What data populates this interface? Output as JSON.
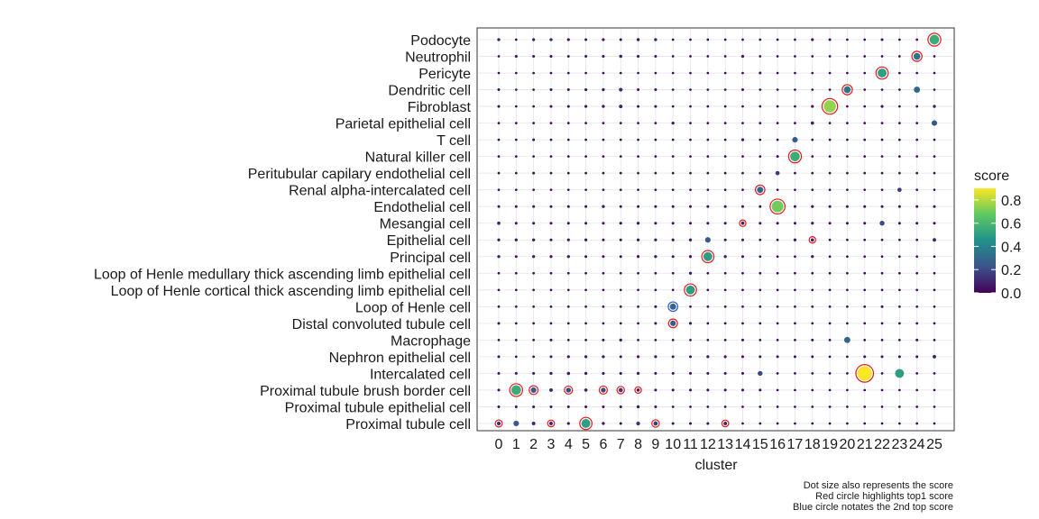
{
  "chart_data": {
    "type": "scatter",
    "xlabel": "cluster",
    "clusters": [
      "0",
      "1",
      "2",
      "3",
      "4",
      "5",
      "6",
      "7",
      "8",
      "9",
      "10",
      "11",
      "12",
      "13",
      "14",
      "15",
      "16",
      "17",
      "18",
      "19",
      "20",
      "21",
      "22",
      "23",
      "24",
      "25"
    ],
    "cell_types": [
      "Podocyte",
      "Neutrophil",
      "Pericyte",
      "Dendritic cell",
      "Fibroblast",
      "Parietal epithelial cell",
      "T cell",
      "Natural killer cell",
      "Peritubular capilary endothelial cell",
      "Renal alpha-intercalated cell",
      "Endothelial cell",
      "Mesangial cell",
      "Epithelial cell",
      "Principal cell",
      "Loop of Henle medullary thick ascending limb epithelial cell",
      "Loop of Henle cortical thick ascending limb epithelial cell",
      "Loop of Henle cell",
      "Distal convoluted tubule cell",
      "Macrophage",
      "Nephron epithelial cell",
      "Intercalated cell",
      "Proximal tubule brush border cell",
      "Proximal tubule epithelial cell",
      "Proximal tubule cell"
    ],
    "scores": [
      [
        0.06,
        0.02,
        0.05,
        0.06,
        0.05,
        0.04,
        0.05,
        0.04,
        0.07,
        0.06,
        0.02,
        0.02,
        0.02,
        0.02,
        0.02,
        0.02,
        0.02,
        0.02,
        0.05,
        0.04,
        0.02,
        0.02,
        0.04,
        0.02,
        0.02,
        0.55
      ],
      [
        0.02,
        0.05,
        0.04,
        0.05,
        0.03,
        0.04,
        0.05,
        0.07,
        0.05,
        0.04,
        0.02,
        0.02,
        0.02,
        0.02,
        0.06,
        0.02,
        0.02,
        0.02,
        0.02,
        0.02,
        0.02,
        0.02,
        0.02,
        0.02,
        0.35,
        0.02
      ],
      [
        0.02,
        0.02,
        0.02,
        0.02,
        0.02,
        0.02,
        0.02,
        0.02,
        0.02,
        0.02,
        0.02,
        0.02,
        0.02,
        0.02,
        0.02,
        0.04,
        0.02,
        0.02,
        0.02,
        0.02,
        0.02,
        0.02,
        0.5,
        0.02,
        0.02,
        0.02
      ],
      [
        0.04,
        0.02,
        0.02,
        0.04,
        0.04,
        0.05,
        0.06,
        0.12,
        0.04,
        0.04,
        0.02,
        0.02,
        0.02,
        0.02,
        0.04,
        0.02,
        0.02,
        0.02,
        0.02,
        0.02,
        0.35,
        0.02,
        0.02,
        0.02,
        0.3,
        0.02
      ],
      [
        0.04,
        0.02,
        0.02,
        0.04,
        0.04,
        0.05,
        0.06,
        0.1,
        0.04,
        0.04,
        0.02,
        0.02,
        0.02,
        0.02,
        0.02,
        0.02,
        0.02,
        0.02,
        0.05,
        0.75,
        0.02,
        0.02,
        0.05,
        0.02,
        0.02,
        0.06
      ],
      [
        0.02,
        0.02,
        0.02,
        0.02,
        0.02,
        0.02,
        0.02,
        0.02,
        0.02,
        0.02,
        0.06,
        0.02,
        0.02,
        0.02,
        0.02,
        0.02,
        0.02,
        0.02,
        0.08,
        0.02,
        0.02,
        0.02,
        0.02,
        0.02,
        0.02,
        0.25
      ],
      [
        0.02,
        0.02,
        0.04,
        0.02,
        0.02,
        0.02,
        0.02,
        0.02,
        0.02,
        0.02,
        0.02,
        0.02,
        0.02,
        0.02,
        0.05,
        0.02,
        0.02,
        0.25,
        0.02,
        0.02,
        0.02,
        0.02,
        0.02,
        0.02,
        0.02,
        0.02
      ],
      [
        0.02,
        0.02,
        0.02,
        0.02,
        0.02,
        0.02,
        0.02,
        0.02,
        0.02,
        0.02,
        0.02,
        0.02,
        0.02,
        0.02,
        0.02,
        0.02,
        0.04,
        0.55,
        0.02,
        0.02,
        0.02,
        0.02,
        0.02,
        0.02,
        0.02,
        0.02
      ],
      [
        0.02,
        0.02,
        0.04,
        0.02,
        0.02,
        0.02,
        0.02,
        0.02,
        0.02,
        0.02,
        0.02,
        0.02,
        0.02,
        0.02,
        0.02,
        0.02,
        0.15,
        0.02,
        0.02,
        0.02,
        0.02,
        0.02,
        0.02,
        0.02,
        0.02,
        0.02
      ],
      [
        0.02,
        0.02,
        0.02,
        0.02,
        0.02,
        0.02,
        0.02,
        0.02,
        0.02,
        0.02,
        0.02,
        0.02,
        0.02,
        0.02,
        0.02,
        0.3,
        0.02,
        0.02,
        0.02,
        0.02,
        0.02,
        0.02,
        0.02,
        0.15,
        0.02,
        0.02
      ],
      [
        0.04,
        0.04,
        0.04,
        0.04,
        0.04,
        0.04,
        0.06,
        0.04,
        0.04,
        0.04,
        0.04,
        0.04,
        0.04,
        0.04,
        0.04,
        0.04,
        0.7,
        0.04,
        0.05,
        0.04,
        0.04,
        0.04,
        0.04,
        0.04,
        0.04,
        0.04
      ],
      [
        0.08,
        0.04,
        0.04,
        0.04,
        0.04,
        0.04,
        0.04,
        0.05,
        0.06,
        0.04,
        0.04,
        0.04,
        0.04,
        0.04,
        0.08,
        0.04,
        0.04,
        0.04,
        0.05,
        0.04,
        0.04,
        0.04,
        0.2,
        0.04,
        0.04,
        0.04
      ],
      [
        0.05,
        0.06,
        0.06,
        0.04,
        0.05,
        0.06,
        0.04,
        0.04,
        0.06,
        0.05,
        0.05,
        0.06,
        0.25,
        0.04,
        0.04,
        0.02,
        0.02,
        0.06,
        0.08,
        0.02,
        0.02,
        0.02,
        0.02,
        0.02,
        0.02,
        0.1
      ],
      [
        0.06,
        0.04,
        0.06,
        0.05,
        0.06,
        0.04,
        0.04,
        0.04,
        0.05,
        0.06,
        0.04,
        0.05,
        0.5,
        0.06,
        0.04,
        0.02,
        0.02,
        0.02,
        0.06,
        0.02,
        0.02,
        0.02,
        0.02,
        0.02,
        0.02,
        0.02
      ],
      [
        0.02,
        0.02,
        0.02,
        0.02,
        0.02,
        0.02,
        0.02,
        0.02,
        0.02,
        0.02,
        0.02,
        0.06,
        0.02,
        0.02,
        0.02,
        0.02,
        0.02,
        0.02,
        0.02,
        0.02,
        0.02,
        0.02,
        0.02,
        0.02,
        0.02,
        0.02
      ],
      [
        0.02,
        0.02,
        0.02,
        0.02,
        0.02,
        0.02,
        0.02,
        0.02,
        0.02,
        0.02,
        0.02,
        0.5,
        0.02,
        0.02,
        0.02,
        0.02,
        0.02,
        0.02,
        0.02,
        0.02,
        0.02,
        0.02,
        0.02,
        0.02,
        0.02,
        0.02
      ],
      [
        0.02,
        0.02,
        0.02,
        0.02,
        0.02,
        0.02,
        0.02,
        0.02,
        0.02,
        0.04,
        0.3,
        0.02,
        0.02,
        0.02,
        0.02,
        0.02,
        0.02,
        0.02,
        0.02,
        0.02,
        0.02,
        0.02,
        0.04,
        0.02,
        0.02,
        0.02
      ],
      [
        0.04,
        0.02,
        0.02,
        0.02,
        0.02,
        0.02,
        0.02,
        0.02,
        0.02,
        0.04,
        0.25,
        0.05,
        0.02,
        0.02,
        0.02,
        0.02,
        0.02,
        0.02,
        0.02,
        0.02,
        0.02,
        0.02,
        0.02,
        0.02,
        0.02,
        0.02
      ],
      [
        0.02,
        0.02,
        0.02,
        0.04,
        0.02,
        0.02,
        0.04,
        0.06,
        0.02,
        0.02,
        0.02,
        0.02,
        0.02,
        0.02,
        0.04,
        0.02,
        0.02,
        0.02,
        0.04,
        0.02,
        0.3,
        0.02,
        0.02,
        0.02,
        0.04,
        0.02
      ],
      [
        0.04,
        0.02,
        0.02,
        0.04,
        0.05,
        0.06,
        0.06,
        0.04,
        0.05,
        0.05,
        0.04,
        0.04,
        0.05,
        0.05,
        0.04,
        0.04,
        0.04,
        0.04,
        0.04,
        0.02,
        0.02,
        0.04,
        0.04,
        0.04,
        0.04,
        0.1
      ],
      [
        0.04,
        0.04,
        0.04,
        0.06,
        0.08,
        0.06,
        0.05,
        0.05,
        0.06,
        0.04,
        0.04,
        0.04,
        0.04,
        0.04,
        0.04,
        0.2,
        0.02,
        0.02,
        0.02,
        0.02,
        0.02,
        0.9,
        0.02,
        0.5,
        0.02,
        0.02
      ],
      [
        0.04,
        0.55,
        0.25,
        0.1,
        0.2,
        0.08,
        0.2,
        0.15,
        0.08,
        0.04,
        0.04,
        0.04,
        0.04,
        0.04,
        0.04,
        0.04,
        0.02,
        0.02,
        0.02,
        0.02,
        0.02,
        0.02,
        0.02,
        0.02,
        0.02,
        0.02
      ],
      [
        0.04,
        0.04,
        0.04,
        0.04,
        0.04,
        0.04,
        0.04,
        0.04,
        0.06,
        0.04,
        0.02,
        0.02,
        0.02,
        0.02,
        0.02,
        0.02,
        0.02,
        0.02,
        0.02,
        0.02,
        0.02,
        0.02,
        0.02,
        0.02,
        0.02,
        0.02
      ],
      [
        0.12,
        0.25,
        0.1,
        0.1,
        0.05,
        0.5,
        0.06,
        0.04,
        0.12,
        0.15,
        0.04,
        0.04,
        0.04,
        0.1,
        0.02,
        0.02,
        0.02,
        0.02,
        0.02,
        0.02,
        0.02,
        0.02,
        0.02,
        0.02,
        0.02,
        0.02
      ]
    ],
    "top1": [
      [
        0,
        25
      ],
      [
        1,
        24
      ],
      [
        2,
        22
      ],
      [
        3,
        20
      ],
      [
        4,
        19
      ],
      [
        7,
        17
      ],
      [
        9,
        15
      ],
      [
        10,
        16
      ],
      [
        11,
        14
      ],
      [
        12,
        18
      ],
      [
        13,
        12
      ],
      [
        15,
        11
      ],
      [
        17,
        10
      ],
      [
        20,
        21
      ],
      [
        21,
        1
      ],
      [
        21,
        2
      ],
      [
        21,
        4
      ],
      [
        21,
        6
      ],
      [
        21,
        7
      ],
      [
        21,
        8
      ],
      [
        23,
        0
      ],
      [
        23,
        3
      ],
      [
        23,
        5
      ],
      [
        23,
        9
      ],
      [
        23,
        13
      ]
    ],
    "top2": [
      [
        1,
        24
      ],
      [
        9,
        15
      ],
      [
        16,
        10
      ]
    ],
    "legend": {
      "title": "score",
      "ticks": [
        "0.0",
        "0.2",
        "0.4",
        "0.6",
        "0.8"
      ],
      "tick_values": [
        0,
        0.2,
        0.4,
        0.6,
        0.8
      ],
      "range": [
        0,
        0.9
      ],
      "colors": [
        "#440154",
        "#3b528b",
        "#21918c",
        "#5ec962",
        "#fde725"
      ]
    },
    "captions": [
      "Dot size also represents the score",
      "Red circle highlights top1 score",
      "Blue circle notates the 2nd top score"
    ]
  }
}
